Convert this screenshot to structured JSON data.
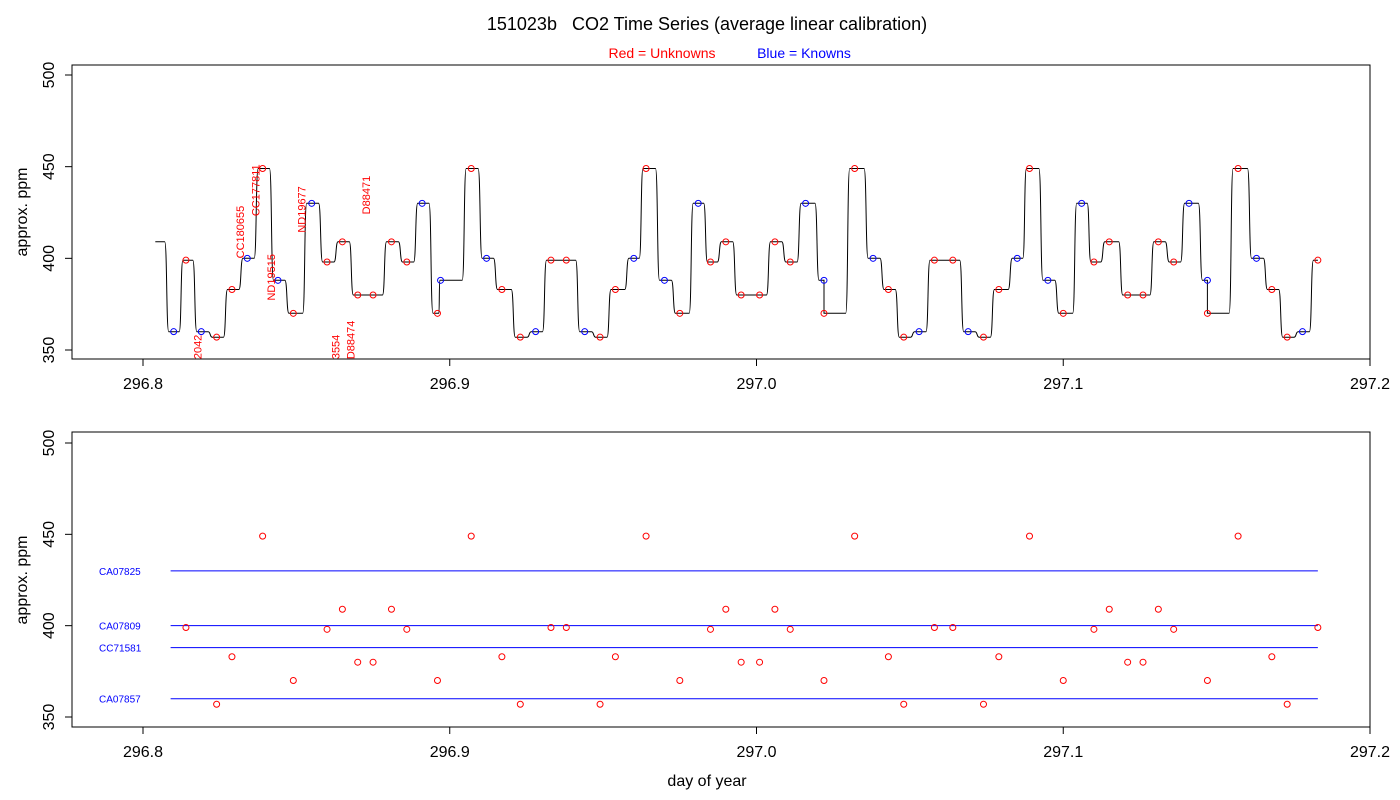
{
  "page": {
    "title": "151023b   CO2 Time Series (average linear calibration)",
    "legend_red_label": "Red = Unknowns",
    "legend_blue_label": "Blue = Knowns",
    "xlabel": "day of year"
  },
  "colors": {
    "unknowns": "#ff0000",
    "knowns": "#0000ff",
    "trace": "#000000",
    "frame": "#000000"
  },
  "chart_data": [
    {
      "type": "line",
      "ylabel": "approx. ppm",
      "xlim": [
        296.78,
        297.2
      ],
      "ylim": [
        345,
        505
      ],
      "xticks": [
        296.8,
        296.9,
        297.0,
        297.1,
        297.2
      ],
      "xtick_labels": [
        "296.8",
        "296.9",
        "297.0",
        "297.1",
        "297.2"
      ],
      "yticks": [
        350,
        400,
        450,
        500
      ],
      "ytick_labels": [
        "350",
        "400",
        "450",
        "500"
      ],
      "trace_start": [
        296.804,
        409
      ],
      "trace_end": 297.183,
      "series": [
        {
          "name": "Knowns",
          "points": [
            [
              296.81,
              360
            ],
            [
              296.819,
              360
            ],
            [
              296.834,
              400
            ],
            [
              296.844,
              388
            ],
            [
              296.855,
              430
            ],
            [
              296.891,
              430
            ],
            [
              296.897,
              388
            ],
            [
              296.912,
              400
            ],
            [
              296.928,
              360
            ],
            [
              296.944,
              360
            ],
            [
              296.96,
              400
            ],
            [
              296.97,
              388
            ],
            [
              296.981,
              430
            ],
            [
              297.016,
              430
            ],
            [
              297.022,
              388
            ],
            [
              297.038,
              400
            ],
            [
              297.053,
              360
            ],
            [
              297.069,
              360
            ],
            [
              297.085,
              400
            ],
            [
              297.095,
              388
            ],
            [
              297.106,
              430
            ],
            [
              297.141,
              430
            ],
            [
              297.147,
              388
            ],
            [
              297.163,
              400
            ],
            [
              297.178,
              360
            ]
          ]
        },
        {
          "name": "Unknowns",
          "points": [
            [
              296.814,
              399
            ],
            [
              296.824,
              357
            ],
            [
              296.829,
              383
            ],
            [
              296.839,
              449
            ],
            [
              296.849,
              370
            ],
            [
              296.86,
              398
            ],
            [
              296.865,
              409
            ],
            [
              296.87,
              380
            ],
            [
              296.875,
              380
            ],
            [
              296.881,
              409
            ],
            [
              296.886,
              398
            ],
            [
              296.896,
              370
            ],
            [
              296.907,
              449
            ],
            [
              296.917,
              383
            ],
            [
              296.923,
              357
            ],
            [
              296.933,
              399
            ],
            [
              296.938,
              399
            ],
            [
              296.949,
              357
            ],
            [
              296.954,
              383
            ],
            [
              296.964,
              449
            ],
            [
              296.975,
              370
            ],
            [
              296.985,
              398
            ],
            [
              296.99,
              409
            ],
            [
              296.995,
              380
            ],
            [
              297.001,
              380
            ],
            [
              297.006,
              409
            ],
            [
              297.011,
              398
            ],
            [
              297.022,
              370
            ],
            [
              297.032,
              449
            ],
            [
              297.043,
              383
            ],
            [
              297.048,
              357
            ],
            [
              297.058,
              399
            ],
            [
              297.064,
              399
            ],
            [
              297.074,
              357
            ],
            [
              297.079,
              383
            ],
            [
              297.089,
              449
            ],
            [
              297.1,
              370
            ],
            [
              297.11,
              398
            ],
            [
              297.115,
              409
            ],
            [
              297.121,
              380
            ],
            [
              297.126,
              380
            ],
            [
              297.131,
              409
            ],
            [
              297.136,
              398
            ],
            [
              297.147,
              370
            ],
            [
              297.157,
              449
            ],
            [
              297.168,
              383
            ],
            [
              297.173,
              357
            ],
            [
              297.183,
              399
            ]
          ]
        }
      ],
      "annotations": [
        {
          "text": "CC180655",
          "x": 296.833,
          "y": 400,
          "color": "#ff0000"
        },
        {
          "text": "CC177811",
          "x": 296.838,
          "y": 423,
          "color": "#ff0000"
        },
        {
          "text": "ND19515",
          "x": 296.843,
          "y": 377,
          "color": "#ff0000"
        },
        {
          "text": "ND19677",
          "x": 296.853,
          "y": 414,
          "color": "#ff0000"
        },
        {
          "text": "D88471",
          "x": 296.874,
          "y": 424,
          "color": "#ff0000"
        },
        {
          "text": "2042",
          "x": 296.819,
          "y": 345,
          "color": "#ff0000"
        },
        {
          "text": "3554",
          "x": 296.864,
          "y": 345,
          "color": "#ff0000"
        },
        {
          "text": "D88474",
          "x": 296.869,
          "y": 345,
          "color": "#ff0000"
        }
      ]
    },
    {
      "type": "scatter",
      "ylabel": "approx. ppm",
      "xlim": [
        296.78,
        297.2
      ],
      "ylim": [
        345,
        505
      ],
      "xticks": [
        296.8,
        296.9,
        297.0,
        297.1,
        297.2
      ],
      "xtick_labels": [
        "296.8",
        "296.9",
        "297.0",
        "297.1",
        "297.2"
      ],
      "yticks": [
        350,
        400,
        450,
        500
      ],
      "ytick_labels": [
        "350",
        "400",
        "450",
        "500"
      ],
      "reference_lines": [
        {
          "name": "CA07825",
          "value": 430,
          "x0": 296.809,
          "x1": 297.183
        },
        {
          "name": "CA07809",
          "value": 400,
          "x0": 296.809,
          "x1": 297.183
        },
        {
          "name": "CC71581",
          "value": 388,
          "x0": 296.809,
          "x1": 297.183
        },
        {
          "name": "CA07857",
          "value": 360,
          "x0": 296.809,
          "x1": 297.183
        }
      ],
      "series": [
        {
          "name": "Unknowns",
          "points": [
            [
              296.814,
              399
            ],
            [
              296.824,
              357
            ],
            [
              296.829,
              383
            ],
            [
              296.839,
              449
            ],
            [
              296.849,
              370
            ],
            [
              296.86,
              398
            ],
            [
              296.865,
              409
            ],
            [
              296.87,
              380
            ],
            [
              296.875,
              380
            ],
            [
              296.881,
              409
            ],
            [
              296.886,
              398
            ],
            [
              296.896,
              370
            ],
            [
              296.907,
              449
            ],
            [
              296.917,
              383
            ],
            [
              296.923,
              357
            ],
            [
              296.933,
              399
            ],
            [
              296.938,
              399
            ],
            [
              296.949,
              357
            ],
            [
              296.954,
              383
            ],
            [
              296.964,
              449
            ],
            [
              296.975,
              370
            ],
            [
              296.985,
              398
            ],
            [
              296.99,
              409
            ],
            [
              296.995,
              380
            ],
            [
              297.001,
              380
            ],
            [
              297.006,
              409
            ],
            [
              297.011,
              398
            ],
            [
              297.022,
              370
            ],
            [
              297.032,
              449
            ],
            [
              297.043,
              383
            ],
            [
              297.048,
              357
            ],
            [
              297.058,
              399
            ],
            [
              297.064,
              399
            ],
            [
              297.074,
              357
            ],
            [
              297.079,
              383
            ],
            [
              297.089,
              449
            ],
            [
              297.1,
              370
            ],
            [
              297.11,
              398
            ],
            [
              297.115,
              409
            ],
            [
              297.121,
              380
            ],
            [
              297.126,
              380
            ],
            [
              297.131,
              409
            ],
            [
              297.136,
              398
            ],
            [
              297.147,
              370
            ],
            [
              297.157,
              449
            ],
            [
              297.168,
              383
            ],
            [
              297.173,
              357
            ],
            [
              297.183,
              399
            ]
          ]
        }
      ]
    }
  ]
}
